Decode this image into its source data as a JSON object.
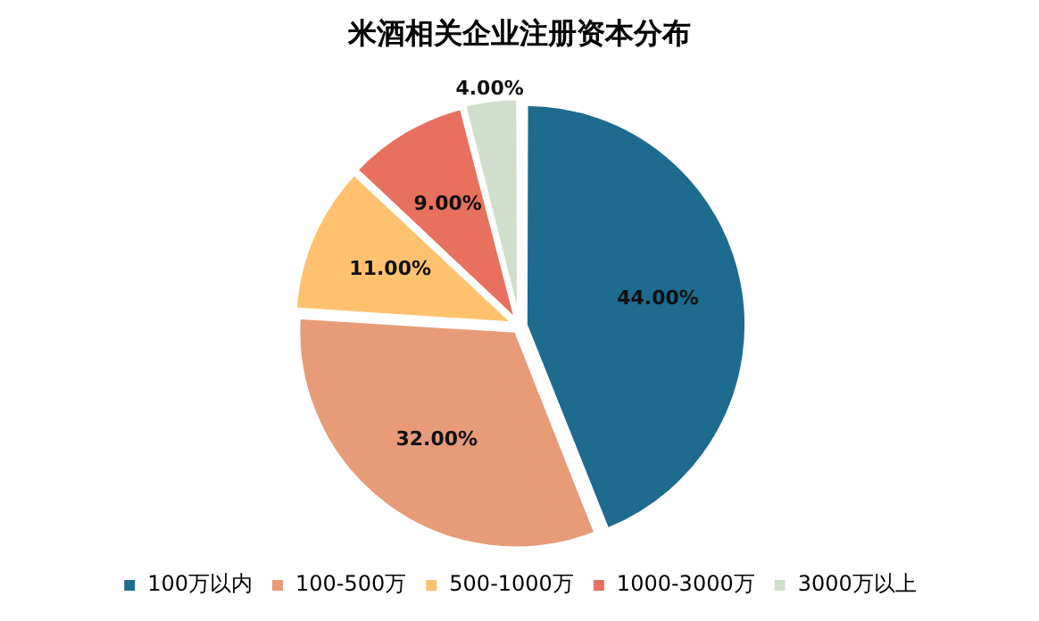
{
  "chart_data": {
    "type": "pie",
    "title": "米酒相关企业注册资本分布",
    "categories": [
      "100万以内",
      "100-500万",
      "500-1000万",
      "1000-3000万",
      "3000万以上"
    ],
    "values": [
      44,
      32,
      11,
      9,
      4
    ],
    "value_labels": [
      "44.00%",
      "32.00%",
      "11.00%",
      "9.00%",
      "4.00%"
    ],
    "colors": [
      "#1d6b8e",
      "#e79b79",
      "#fec26e",
      "#e8705e",
      "#d0dfcc"
    ],
    "legend": "bottom"
  }
}
